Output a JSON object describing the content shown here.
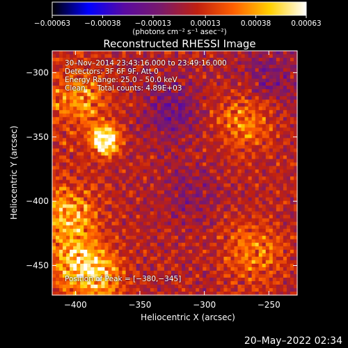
{
  "chart_data": {
    "type": "heatmap",
    "title": "Reconstructed RHESSI Image",
    "xlabel": "Heliocentric X (arcsec)",
    "ylabel": "Heliocentric Y (arcsec)",
    "xlim": [
      -418,
      -228
    ],
    "ylim": [
      -473,
      -283
    ],
    "x_ticks": [
      -400,
      -350,
      -300,
      -250
    ],
    "x_tick_labels": [
      "−400",
      "−350",
      "−300",
      "−250"
    ],
    "y_ticks": [
      -300,
      -350,
      -400,
      -450
    ],
    "y_tick_labels": [
      "−300",
      "−350",
      "−400",
      "−450"
    ],
    "colorbar": {
      "range": [
        -0.00063,
        0.00063
      ],
      "ticks": [
        -0.00063,
        -0.00038,
        -0.00013,
        0.00013,
        0.00038,
        0.00063
      ],
      "tick_labels": [
        "−0.00063",
        "−0.00038",
        "−0.00013",
        "0.00013",
        "0.00038",
        "0.00063"
      ],
      "units_label": "(photons cm⁻² s⁻¹ asec⁻²)",
      "colormap": [
        "#000000",
        "#0000ff",
        "#5a0aa0",
        "#7a1a6a",
        "#c02010",
        "#ff6000",
        "#ffd000",
        "#ffffff"
      ]
    },
    "peak": [
      -380,
      -345
    ],
    "features": [
      {
        "name": "bright source",
        "x": -378,
        "y": -350,
        "level": 0.95
      },
      {
        "name": "bright source",
        "x": -376,
        "y": -355,
        "level": 0.85
      },
      {
        "name": "bright band",
        "x": -395,
        "y": -320,
        "level": 0.6
      },
      {
        "name": "bright band",
        "x": -405,
        "y": -410,
        "level": 0.7
      },
      {
        "name": "bright band",
        "x": -398,
        "y": -445,
        "level": 0.75
      },
      {
        "name": "bright band",
        "x": -382,
        "y": -460,
        "level": 0.7
      },
      {
        "name": "ring",
        "x": -268,
        "y": -336,
        "level": 0.55
      },
      {
        "name": "ring",
        "x": -262,
        "y": -440,
        "level": 0.55
      },
      {
        "name": "negative area",
        "x": -325,
        "y": -330,
        "level": -0.45
      },
      {
        "name": "negative area",
        "x": -250,
        "y": -305,
        "level": -0.4
      },
      {
        "name": "negative area",
        "x": -310,
        "y": -395,
        "level": -0.3
      }
    ]
  },
  "annotations": {
    "line1": "30–Nov–2014 23:43:16.000 to 23:49:16.000",
    "line2": "Detectors: 3F 6F 9F, Att 0",
    "line3": "Energy Range: 25.0 – 50.0 keV",
    "line4": "Clean     Total counts: 4.89E+03",
    "peak_label": "Position of Peak = [−380,−345]"
  },
  "timestamp": "20–May–2022 02:34"
}
